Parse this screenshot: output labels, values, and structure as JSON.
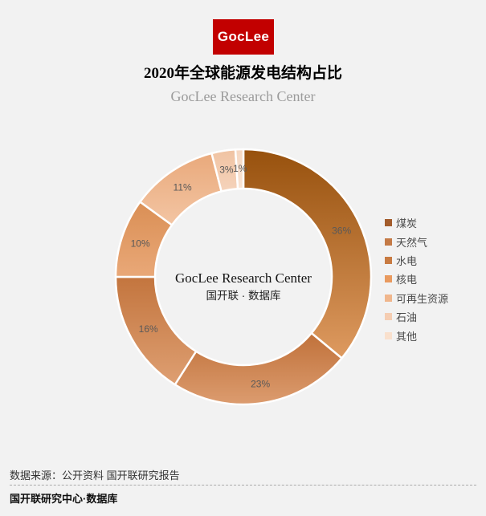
{
  "page": {
    "background": "#F2F2F2"
  },
  "header": {
    "logo_text": "GocLee",
    "logo_bg": "#C20000",
    "title": "2020年全球能源发电结构占比",
    "subtitle": "GocLee Research Center"
  },
  "chart_data": {
    "type": "pie",
    "donut": true,
    "title": "2020年全球能源发电结构占比",
    "legend_position": "right",
    "start_angle_deg": 0,
    "direction": "clockwise",
    "categories": [
      "煤炭",
      "天然气",
      "水电",
      "核电",
      "可再生资源",
      "石油",
      "其他"
    ],
    "values": [
      36,
      23,
      16,
      10,
      11,
      3,
      1
    ],
    "labels": [
      "36%",
      "23%",
      "16%",
      "10%",
      "11%",
      "3%",
      "1%"
    ],
    "legend_colors": [
      "#A35C2B",
      "#C47A46",
      "#C87B42",
      "#E99A5F",
      "#F0B68C",
      "#F5CDB2",
      "#F9E0CD"
    ],
    "slice_gradient_dark": [
      "#97510D",
      "#C0713A",
      "#C3753E",
      "#DA8F55",
      "#E9A97B",
      "#F0C3A2",
      "#F5D7C1"
    ],
    "slice_gradient_light": [
      "#DE9A60",
      "#DC9C6F",
      "#DE9F72",
      "#E9A878",
      "#F3C5A3",
      "#F5D3BB",
      "#F9E4D4"
    ],
    "separator_color": "#FFFFFF",
    "label_color": "#595959",
    "center_label_line1": "GocLee Research Center",
    "center_label_line2": "国开联 · 数据库"
  },
  "footer": {
    "source": "数据来源：公开资料 国开联研究报告",
    "brand": "国开联研究中心·数据库"
  }
}
